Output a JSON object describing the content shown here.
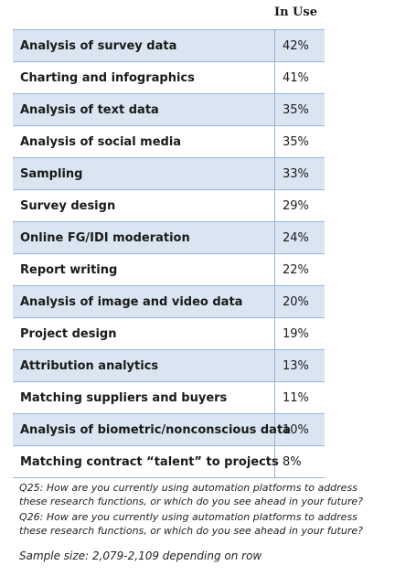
{
  "header": {
    "column_label": "In Use"
  },
  "rows": [
    {
      "label": "Analysis of survey data",
      "value": "42%"
    },
    {
      "label": "Charting and infographics",
      "value": "41%"
    },
    {
      "label": "Analysis of text data",
      "value": "35%"
    },
    {
      "label": "Analysis of social media",
      "value": "35%"
    },
    {
      "label": "Sampling",
      "value": "33%"
    },
    {
      "label": "Survey design",
      "value": "29%"
    },
    {
      "label": "Online FG/IDI moderation",
      "value": "24%"
    },
    {
      "label": "Report writing",
      "value": "22%"
    },
    {
      "label": "Analysis of image and video data",
      "value": "20%"
    },
    {
      "label": "Project design",
      "value": "19%"
    },
    {
      "label": "Attribution analytics",
      "value": "13%"
    },
    {
      "label": "Matching suppliers and buyers",
      "value": "11%"
    },
    {
      "label": "Analysis of biometric/nonconscious data",
      "value": "10%"
    },
    {
      "label": "Matching contract “talent” to projects",
      "value": "8%"
    }
  ],
  "footnotes": {
    "q25_line1": "Q25: How are you currently using automation platforms to address",
    "q25_line2": "these research functions, or which do you see ahead in your future?",
    "q26_line1": "Q26: How are you currently using automation platforms to address",
    "q26_line2": "these research functions, or which do you see ahead in your future?"
  },
  "sample_size": "Sample size: 2,079-2,109 depending on row",
  "colors": {
    "shaded_row": "#dbe5f1",
    "border": "#95b3d7"
  }
}
